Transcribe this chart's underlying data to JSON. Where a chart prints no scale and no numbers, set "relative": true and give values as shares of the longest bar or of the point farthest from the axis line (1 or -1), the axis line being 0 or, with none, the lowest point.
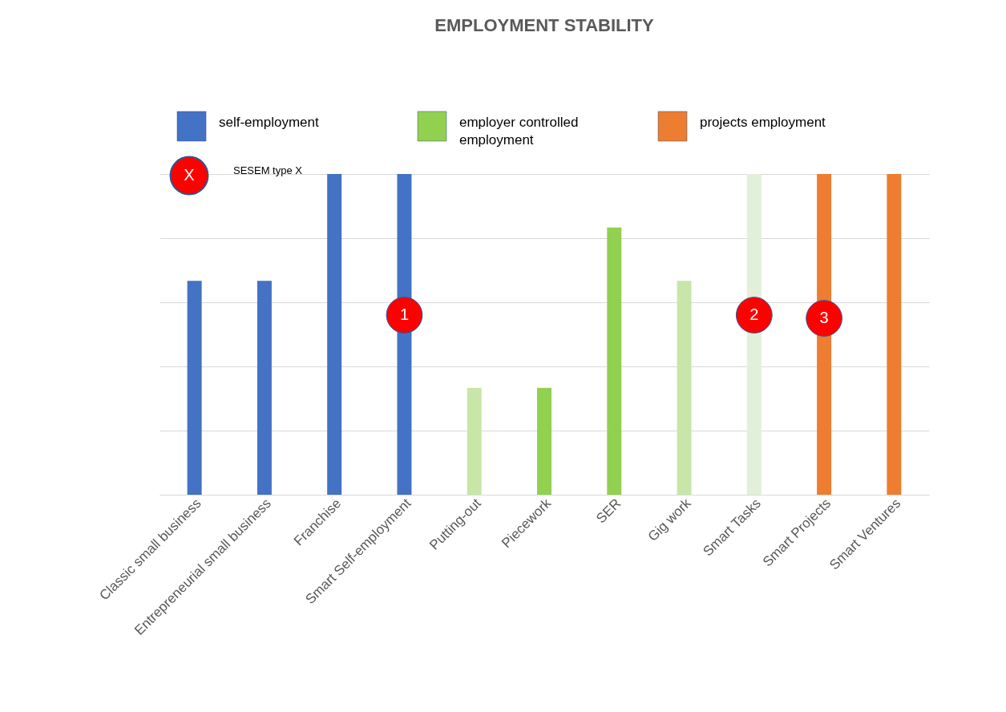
{
  "chart_data": {
    "type": "bar",
    "title": "EMPLOYMENT STABILITY",
    "relative": true,
    "grid": "y",
    "legend": "top",
    "categories": [
      "Classic small business",
      "Entrepreneurial small business",
      "Franchise",
      "Smart Self-employment",
      "Putting-out",
      "Piecework",
      "SER",
      "Gig work",
      "Smart Tasks",
      "Smart Projects",
      "Smart Ventures"
    ],
    "series": [
      {
        "name": "self-employment",
        "color": "#4472c4",
        "values": [
          0.667,
          0.667,
          1,
          1,
          null,
          null,
          null,
          null,
          null,
          null,
          null
        ]
      },
      {
        "name": "employer controlled employment",
        "color": "#92d050",
        "values": [
          null,
          null,
          null,
          null,
          null,
          0.333,
          0.833,
          null,
          null,
          null,
          null
        ]
      },
      {
        "color": "#c9e6a9",
        "values": [
          null,
          null,
          null,
          null,
          0.333,
          null,
          null,
          0.667,
          null,
          null,
          null
        ]
      },
      {
        "color": "#e2f0d9",
        "values": [
          null,
          null,
          null,
          null,
          null,
          null,
          null,
          null,
          1,
          null,
          null
        ]
      },
      {
        "name": "projects employment",
        "color": "#ed7d31",
        "values": [
          null,
          null,
          null,
          null,
          null,
          null,
          null,
          null,
          null,
          1,
          1
        ]
      }
    ],
    "annotations": [
      "X",
      "SESEM type X",
      {
        "text": "1",
        "x": "Smart Self-employment",
        "y": 0.56
      },
      {
        "text": "2",
        "x": "Smart Tasks",
        "y": 0.56
      },
      {
        "text": "3",
        "x": "Smart Projects",
        "y": 0.55
      }
    ]
  }
}
